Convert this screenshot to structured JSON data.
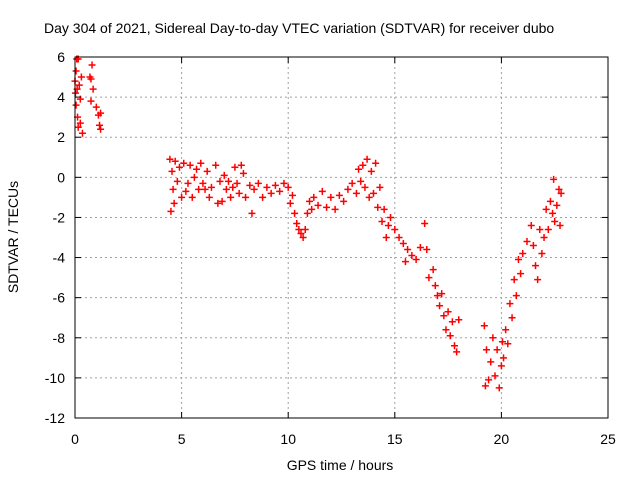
{
  "chart_data": {
    "type": "scatter",
    "title": "Day 304 of 2021, Sidereal Day-to-day VTEC variation (SDTVAR) for receiver dubo",
    "xlabel": "GPS time / hours",
    "ylabel": "SDTVAR / TECUs",
    "xlim": [
      0,
      25
    ],
    "ylim": [
      -12,
      6
    ],
    "xticks": [
      0,
      5,
      10,
      15,
      20,
      25
    ],
    "yticks": [
      -12,
      -10,
      -8,
      -6,
      -4,
      -2,
      0,
      2,
      4,
      6
    ],
    "grid": true,
    "marker": "+",
    "color": "#ff0000",
    "series": [
      {
        "name": "SDTVAR",
        "points": [
          [
            0.0,
            4.8
          ],
          [
            0.02,
            4.2
          ],
          [
            0.05,
            5.3
          ],
          [
            0.05,
            3.6
          ],
          [
            0.08,
            5.9
          ],
          [
            0.1,
            4.4
          ],
          [
            0.12,
            3.0
          ],
          [
            0.15,
            5.9
          ],
          [
            0.15,
            2.5
          ],
          [
            0.2,
            4.6
          ],
          [
            0.25,
            3.9
          ],
          [
            0.25,
            2.7
          ],
          [
            0.3,
            5.0
          ],
          [
            0.35,
            2.2
          ],
          [
            0.7,
            5.0
          ],
          [
            0.75,
            4.9
          ],
          [
            0.75,
            3.8
          ],
          [
            0.8,
            5.6
          ],
          [
            0.85,
            4.4
          ],
          [
            1.0,
            3.5
          ],
          [
            1.1,
            3.1
          ],
          [
            1.15,
            2.6
          ],
          [
            1.2,
            2.4
          ],
          [
            1.2,
            3.2
          ],
          [
            4.45,
            0.9
          ],
          [
            4.5,
            -1.7
          ],
          [
            4.55,
            0.3
          ],
          [
            4.6,
            -0.6
          ],
          [
            4.65,
            -1.3
          ],
          [
            4.7,
            0.8
          ],
          [
            4.8,
            -0.2
          ],
          [
            4.9,
            0.5
          ],
          [
            5.0,
            -1.0
          ],
          [
            5.1,
            0.7
          ],
          [
            5.2,
            -0.7
          ],
          [
            5.3,
            -0.3
          ],
          [
            5.4,
            0.6
          ],
          [
            5.5,
            -1.0
          ],
          [
            5.6,
            0.0
          ],
          [
            5.7,
            0.4
          ],
          [
            5.8,
            -0.6
          ],
          [
            5.9,
            0.7
          ],
          [
            6.0,
            -0.3
          ],
          [
            6.1,
            -0.6
          ],
          [
            6.2,
            0.3
          ],
          [
            6.3,
            -1.0
          ],
          [
            6.4,
            -0.5
          ],
          [
            6.6,
            0.6
          ],
          [
            6.7,
            -1.3
          ],
          [
            6.8,
            -0.2
          ],
          [
            6.9,
            -1.2
          ],
          [
            7.0,
            0.1
          ],
          [
            7.1,
            -0.6
          ],
          [
            7.2,
            -0.2
          ],
          [
            7.3,
            -1.0
          ],
          [
            7.4,
            -0.5
          ],
          [
            7.5,
            0.5
          ],
          [
            7.6,
            -0.3
          ],
          [
            7.7,
            -0.8
          ],
          [
            7.8,
            0.6
          ],
          [
            7.9,
            0.2
          ],
          [
            8.0,
            -1.0
          ],
          [
            8.2,
            -0.4
          ],
          [
            8.3,
            -1.8
          ],
          [
            8.4,
            -0.6
          ],
          [
            8.6,
            -0.3
          ],
          [
            8.8,
            -1.0
          ],
          [
            9.0,
            -0.5
          ],
          [
            9.2,
            -0.8
          ],
          [
            9.4,
            -0.4
          ],
          [
            9.6,
            -0.7
          ],
          [
            9.8,
            -0.3
          ],
          [
            10.0,
            -0.5
          ],
          [
            10.1,
            -1.3
          ],
          [
            10.2,
            -0.9
          ],
          [
            10.3,
            -1.8
          ],
          [
            10.4,
            -2.3
          ],
          [
            10.5,
            -2.6
          ],
          [
            10.6,
            -2.8
          ],
          [
            10.7,
            -3.0
          ],
          [
            10.8,
            -2.6
          ],
          [
            10.9,
            -1.8
          ],
          [
            11.0,
            -1.2
          ],
          [
            11.1,
            -1.6
          ],
          [
            11.2,
            -1.0
          ],
          [
            11.4,
            -1.4
          ],
          [
            11.6,
            -0.7
          ],
          [
            11.8,
            -1.5
          ],
          [
            12.0,
            -1.0
          ],
          [
            12.2,
            -1.6
          ],
          [
            12.4,
            -0.9
          ],
          [
            12.6,
            -1.2
          ],
          [
            12.8,
            -0.6
          ],
          [
            13.0,
            -0.3
          ],
          [
            13.2,
            -0.8
          ],
          [
            13.3,
            0.4
          ],
          [
            13.4,
            -0.2
          ],
          [
            13.5,
            0.6
          ],
          [
            13.6,
            -0.5
          ],
          [
            13.7,
            0.9
          ],
          [
            13.8,
            -1.0
          ],
          [
            13.9,
            0.3
          ],
          [
            14.0,
            -0.8
          ],
          [
            14.1,
            0.7
          ],
          [
            14.2,
            -1.5
          ],
          [
            14.3,
            -0.5
          ],
          [
            14.4,
            -2.2
          ],
          [
            14.5,
            -1.6
          ],
          [
            14.6,
            -3.0
          ],
          [
            14.7,
            -2.4
          ],
          [
            14.8,
            -2.0
          ],
          [
            15.0,
            -2.6
          ],
          [
            15.2,
            -3.0
          ],
          [
            15.4,
            -3.3
          ],
          [
            15.5,
            -4.2
          ],
          [
            15.6,
            -3.6
          ],
          [
            15.8,
            -3.9
          ],
          [
            16.0,
            -4.1
          ],
          [
            16.2,
            -3.5
          ],
          [
            16.4,
            -2.3
          ],
          [
            16.5,
            -3.6
          ],
          [
            16.6,
            -5.0
          ],
          [
            16.8,
            -4.6
          ],
          [
            16.9,
            -5.4
          ],
          [
            17.0,
            -5.9
          ],
          [
            17.1,
            -6.4
          ],
          [
            17.2,
            -5.8
          ],
          [
            17.3,
            -6.9
          ],
          [
            17.4,
            -7.6
          ],
          [
            17.5,
            -6.7
          ],
          [
            17.6,
            -7.9
          ],
          [
            17.7,
            -7.2
          ],
          [
            17.8,
            -8.4
          ],
          [
            17.9,
            -8.7
          ],
          [
            18.0,
            -7.1
          ],
          [
            19.2,
            -7.4
          ],
          [
            19.25,
            -10.4
          ],
          [
            19.3,
            -8.6
          ],
          [
            19.4,
            -10.1
          ],
          [
            19.5,
            -9.2
          ],
          [
            19.6,
            -8.0
          ],
          [
            19.7,
            -9.9
          ],
          [
            19.8,
            -8.6
          ],
          [
            19.9,
            -10.5
          ],
          [
            20.0,
            -9.4
          ],
          [
            20.05,
            -8.2
          ],
          [
            20.1,
            -9.0
          ],
          [
            20.2,
            -7.6
          ],
          [
            20.3,
            -8.3
          ],
          [
            20.4,
            -6.3
          ],
          [
            20.5,
            -7.0
          ],
          [
            20.6,
            -5.1
          ],
          [
            20.7,
            -5.9
          ],
          [
            20.8,
            -4.1
          ],
          [
            20.9,
            -4.8
          ],
          [
            21.0,
            -3.8
          ],
          [
            21.2,
            -3.2
          ],
          [
            21.4,
            -2.4
          ],
          [
            21.5,
            -3.4
          ],
          [
            21.6,
            -4.4
          ],
          [
            21.7,
            -5.1
          ],
          [
            21.8,
            -2.6
          ],
          [
            21.9,
            -3.8
          ],
          [
            22.0,
            -3.0
          ],
          [
            22.1,
            -1.6
          ],
          [
            22.2,
            -2.6
          ],
          [
            22.3,
            -1.2
          ],
          [
            22.4,
            -1.8
          ],
          [
            22.45,
            -0.1
          ],
          [
            22.5,
            -2.2
          ],
          [
            22.6,
            -1.4
          ],
          [
            22.7,
            -0.6
          ],
          [
            22.75,
            -2.4
          ],
          [
            22.8,
            -0.8
          ]
        ]
      }
    ]
  }
}
